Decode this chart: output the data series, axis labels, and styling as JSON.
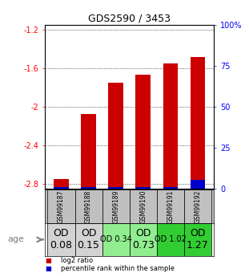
{
  "title": "GDS2590 / 3453",
  "samples": [
    "GSM99187",
    "GSM99188",
    "GSM99189",
    "GSM99190",
    "GSM99191",
    "GSM99192"
  ],
  "log2_ratios": [
    -2.75,
    -2.08,
    -1.75,
    -1.67,
    -1.55,
    -1.48
  ],
  "percentile_ranks": [
    1,
    1,
    1,
    1,
    1,
    5
  ],
  "od_labels": [
    "OD\n0.08",
    "OD\n0.15",
    "OD 0.34",
    "OD\n0.73",
    "OD 1.02",
    "OD\n1.27"
  ],
  "od_bg_colors": [
    "#d3d3d3",
    "#d3d3d3",
    "#90ee90",
    "#90ee90",
    "#32cd32",
    "#32cd32"
  ],
  "od_font_sizes": [
    9,
    9,
    7,
    9,
    7,
    9
  ],
  "ylim_left": [
    -2.85,
    -1.15
  ],
  "ylim_right": [
    0,
    100
  ],
  "yticks_left": [
    -2.8,
    -2.4,
    -2.0,
    -1.6,
    -1.2
  ],
  "yticks_right": [
    0,
    25,
    50,
    75,
    100
  ],
  "ytick_labels_left": [
    "-2.8",
    "-2.4",
    "-2",
    "-1.6",
    "-1.2"
  ],
  "ytick_labels_right": [
    "0",
    "25",
    "50",
    "75",
    "100%"
  ],
  "bar_color_red": "#cc0000",
  "bar_color_blue": "#0000cc",
  "bar_width": 0.55,
  "background_color": "#ffffff",
  "plot_bg_color": "#ffffff",
  "sample_bg_color": "#c0c0c0",
  "age_label": "age",
  "legend_red": "log2 ratio",
  "legend_blue": "percentile rank within the sample"
}
